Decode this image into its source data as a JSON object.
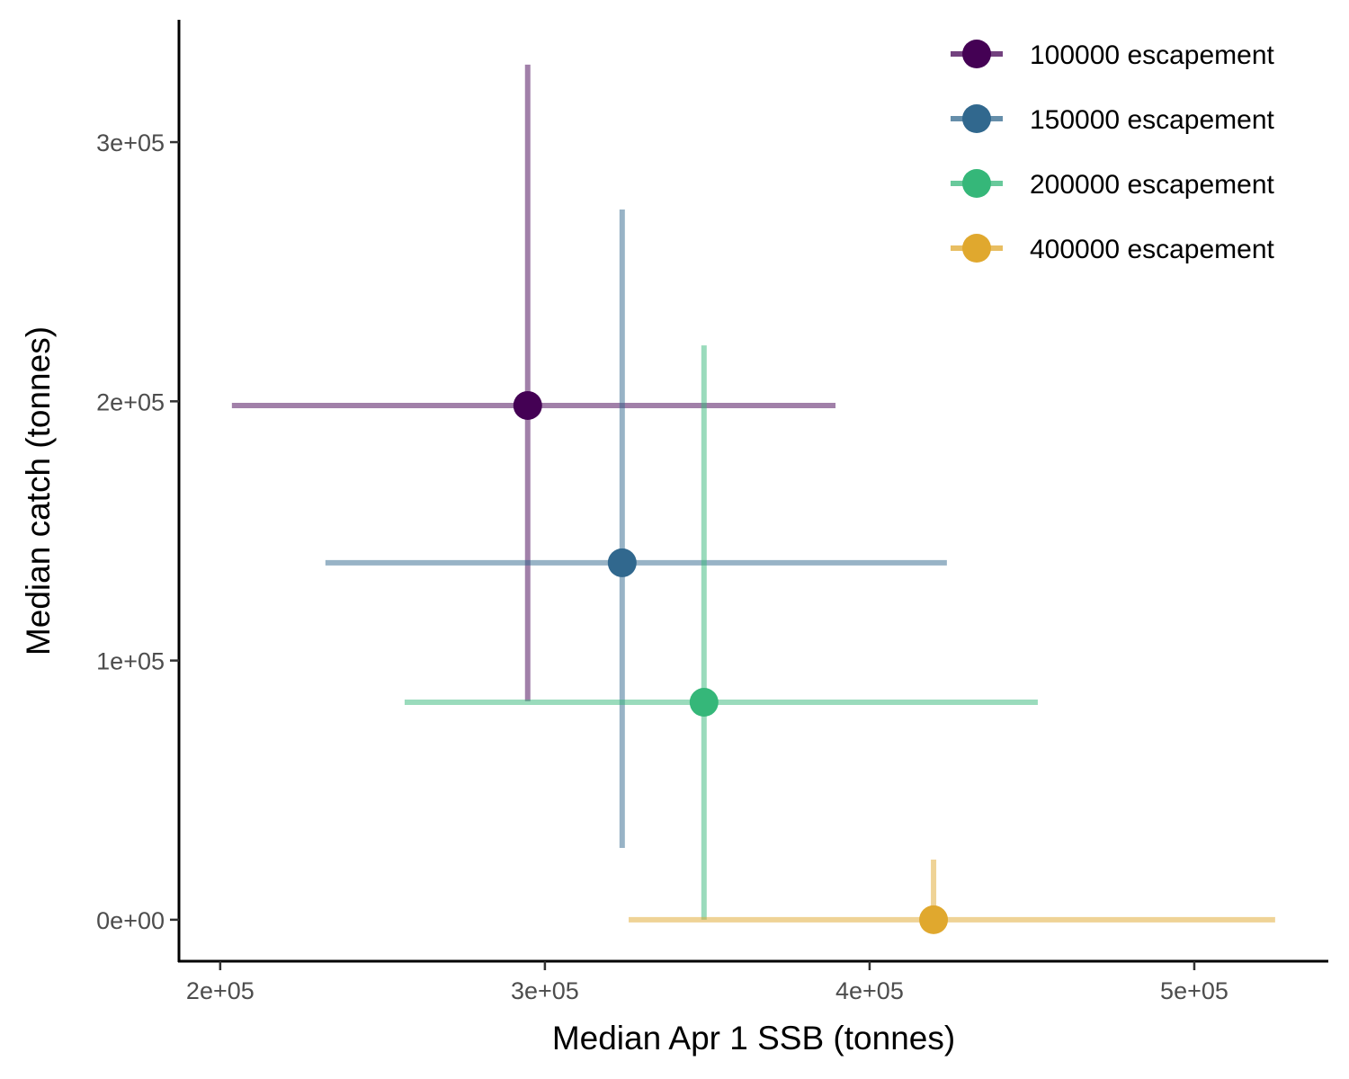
{
  "chart_data": {
    "type": "scatter",
    "title": "",
    "xlabel": "Median Apr 1 SSB (tonnes)",
    "ylabel": "Median catch (tonnes)",
    "xlim": [
      187300,
      541000
    ],
    "ylim": [
      -16000,
      347200
    ],
    "x_ticks": [
      200000,
      300000,
      400000,
      500000
    ],
    "x_tick_labels": [
      "2e+05",
      "3e+05",
      "4e+05",
      "5e+05"
    ],
    "y_ticks": [
      0,
      100000,
      200000,
      300000
    ],
    "y_tick_labels": [
      "0e+00",
      "1e+05",
      "2e+05",
      "3e+05"
    ],
    "grid": false,
    "legend_position": "top-right",
    "series": [
      {
        "name": "100000 escapement",
        "color": "#440154",
        "x": 294700,
        "y": 198400,
        "x_low": 203600,
        "x_high": 389500,
        "y_low": 84300,
        "y_high": 329900
      },
      {
        "name": "150000 escapement",
        "color": "#31688E",
        "x": 323800,
        "y": 137700,
        "x_low": 232400,
        "x_high": 423800,
        "y_low": 27700,
        "y_high": 274000
      },
      {
        "name": "200000 escapement",
        "color": "#35B779",
        "x": 349000,
        "y": 83900,
        "x_low": 256800,
        "x_high": 451800,
        "y_low": 0,
        "y_high": 221600
      },
      {
        "name": "400000 escapement",
        "color": "#E0A82E",
        "x": 419700,
        "y": 0,
        "x_low": 325800,
        "x_high": 524900,
        "y_low": 0,
        "y_high": 23200
      }
    ]
  }
}
